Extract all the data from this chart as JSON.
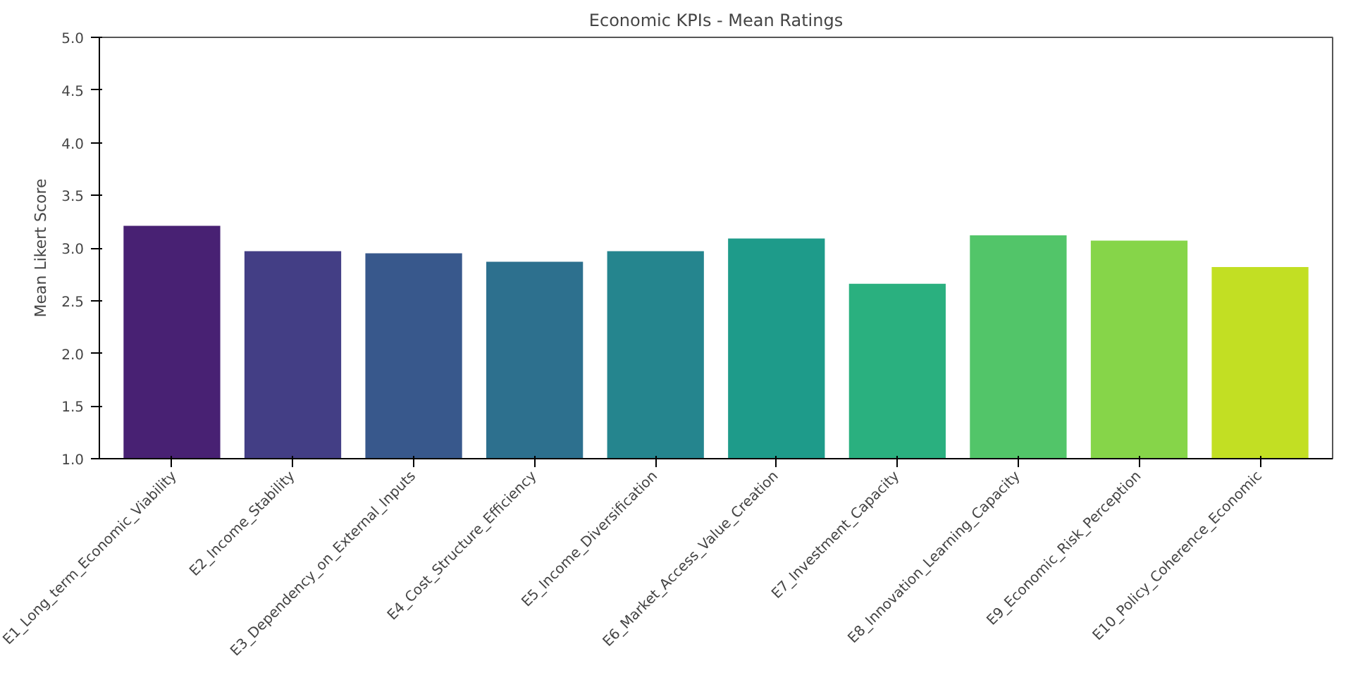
{
  "chart_data": {
    "type": "bar",
    "title": "Economic KPIs - Mean Ratings",
    "ylabel": "Mean Likert Score",
    "categories": [
      "E1_Long_term_Economic_Viability",
      "E2_Income_Stability",
      "E3_Dependency_on_External_Inputs",
      "E4_Cost_Structure_Efficiency",
      "E5_Income_Diversification",
      "E6_Market_Access_Value_Creation",
      "E7_Investment_Capacity",
      "E8_Innovation_Learning_Capacity",
      "E9_Economic_Risk_Perception",
      "E10_Policy_Coherence_Economic"
    ],
    "values": [
      3.21,
      2.97,
      2.95,
      2.87,
      2.97,
      3.09,
      2.66,
      3.12,
      3.07,
      2.82
    ],
    "colors": [
      "#482173",
      "#433e85",
      "#38588c",
      "#2d708e",
      "#25858e",
      "#1e9b8a",
      "#2ab07f",
      "#52c569",
      "#86d549",
      "#c2df23"
    ],
    "ylim": [
      1.0,
      5.0
    ],
    "yticks": [
      {
        "value": 1.0,
        "label": "1.0"
      },
      {
        "value": 1.5,
        "label": "1.5"
      },
      {
        "value": 2.0,
        "label": "2.0"
      },
      {
        "value": 2.5,
        "label": "2.5"
      },
      {
        "value": 3.0,
        "label": "3.0"
      },
      {
        "value": 3.5,
        "label": "3.5"
      },
      {
        "value": 4.0,
        "label": "4.0"
      },
      {
        "value": 4.5,
        "label": "4.5"
      },
      {
        "value": 5.0,
        "label": "5.0"
      }
    ],
    "grid": false
  }
}
